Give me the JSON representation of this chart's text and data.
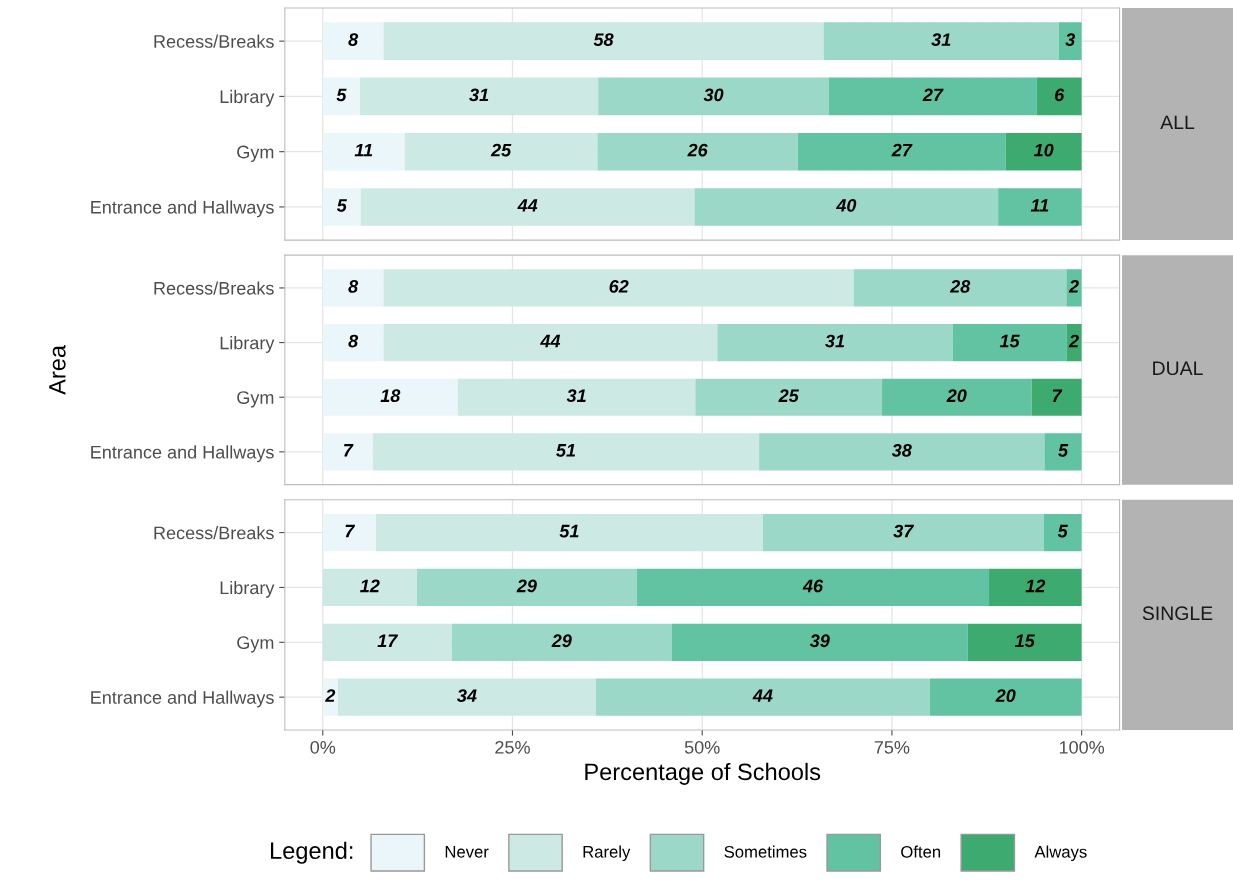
{
  "chart_data": [
    {
      "type": "bar",
      "orientation": "horizontal",
      "stacked": true,
      "annotations": [
        "ALL"
      ],
      "legend_title": "Legend:",
      "categories": [
        "Recess/Breaks",
        "Library",
        "Gym",
        "Entrance and Hallways"
      ],
      "xlim": [
        -5,
        105
      ],
      "xticks": [
        {
          "value": 0,
          "label": null
        },
        {
          "value": 25,
          "label": null
        },
        {
          "value": 50,
          "label": null
        },
        {
          "value": 75,
          "label": null
        },
        {
          "value": 100,
          "label": null
        }
      ],
      "tick_labels": "y",
      "grid": true,
      "legend": "bottom",
      "series": [
        {
          "name": "Never",
          "color": "#eaf6f9",
          "values": [
            8,
            4.9,
            10.8,
            5
          ],
          "value_labels": [
            "8",
            "5",
            "11",
            "5"
          ]
        },
        {
          "name": "Rarely",
          "color": "#cceae3",
          "values": [
            58,
            31.4,
            25.4,
            44
          ],
          "value_labels": [
            "58",
            "31",
            "25",
            "44"
          ]
        },
        {
          "name": "Sometimes",
          "color": "#9bd8c7",
          "values": [
            31,
            30.4,
            26.4,
            40
          ],
          "value_labels": [
            "31",
            "30",
            "26",
            "40"
          ]
        },
        {
          "name": "Often",
          "color": "#62c3a2",
          "values": [
            3,
            27.4,
            27.4,
            11
          ],
          "value_labels": [
            "3",
            "27",
            "27",
            "11"
          ]
        },
        {
          "name": "Always",
          "color": "#3dab6f",
          "values": [
            null,
            5.9,
            10.0,
            null
          ],
          "value_labels": [
            null,
            "6",
            "10",
            null
          ]
        }
      ]
    },
    {
      "type": "bar",
      "orientation": "horizontal",
      "stacked": true,
      "annotations": [
        "DUAL"
      ],
      "ylabel": "Area",
      "categories": [
        "Recess/Breaks",
        "Library",
        "Gym",
        "Entrance and Hallways"
      ],
      "xlim": [
        -5,
        105
      ],
      "xticks": [
        {
          "value": 0,
          "label": null
        },
        {
          "value": 25,
          "label": null
        },
        {
          "value": 50,
          "label": null
        },
        {
          "value": 75,
          "label": null
        },
        {
          "value": 100,
          "label": null
        }
      ],
      "tick_labels": "y",
      "grid": true,
      "series": [
        {
          "color": "#eaf6f9",
          "values": [
            8,
            8,
            17.8,
            6.6
          ],
          "value_labels": [
            "8",
            "8",
            "18",
            "7"
          ]
        },
        {
          "color": "#cceae3",
          "values": [
            62,
            44,
            31.3,
            50.9
          ],
          "value_labels": [
            "62",
            "44",
            "31",
            "51"
          ]
        },
        {
          "color": "#9bd8c7",
          "values": [
            28,
            31,
            24.6,
            37.6
          ],
          "value_labels": [
            "28",
            "31",
            "25",
            "38"
          ]
        },
        {
          "color": "#62c3a2",
          "values": [
            2,
            15,
            19.7,
            4.9
          ],
          "value_labels": [
            "2",
            "15",
            "20",
            "5"
          ]
        },
        {
          "color": "#3dab6f",
          "values": [
            null,
            2,
            6.6,
            null
          ],
          "value_labels": [
            null,
            "2",
            "7",
            null
          ]
        }
      ]
    },
    {
      "type": "bar",
      "orientation": "horizontal",
      "stacked": true,
      "annotations": [
        "SINGLE"
      ],
      "xlabel": "Percentage of Schools",
      "categories": [
        "Recess/Breaks",
        "Library",
        "Gym",
        "Entrance and Hallways"
      ],
      "xlim": [
        -5,
        105
      ],
      "xticks": [
        {
          "value": 0,
          "label": "0%"
        },
        {
          "value": 25,
          "label": "25%"
        },
        {
          "value": 50,
          "label": "50%"
        },
        {
          "value": 75,
          "label": "75%"
        },
        {
          "value": 100,
          "label": "100%"
        }
      ],
      "grid": true,
      "series": [
        {
          "color": "#eaf6f9",
          "values": [
            7,
            null,
            null,
            2
          ],
          "value_labels": [
            "7",
            null,
            null,
            "2"
          ]
        },
        {
          "color": "#cceae3",
          "values": [
            51,
            12.4,
            17,
            34
          ],
          "value_labels": [
            "51",
            "12",
            "17",
            "34"
          ]
        },
        {
          "color": "#9bd8c7",
          "values": [
            37,
            29.0,
            29,
            44
          ],
          "value_labels": [
            "37",
            "29",
            "29",
            "44"
          ]
        },
        {
          "color": "#62c3a2",
          "values": [
            5,
            46.4,
            39,
            20
          ],
          "value_labels": [
            "5",
            "46",
            "39",
            "20"
          ]
        },
        {
          "color": "#3dab6f",
          "values": [
            null,
            12.2,
            15,
            null
          ],
          "value_labels": [
            null,
            "12",
            "15",
            null
          ]
        }
      ]
    }
  ]
}
